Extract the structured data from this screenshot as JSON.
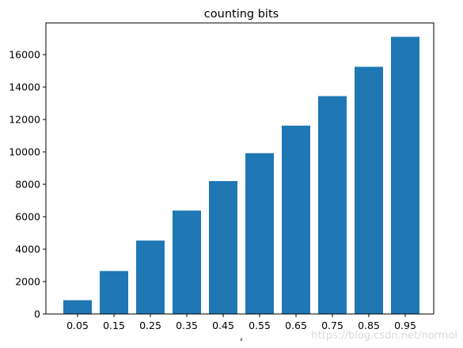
{
  "chart_data": {
    "type": "bar",
    "title": "counting bits",
    "xlabel": "x",
    "ylabel": "",
    "categories": [
      "0.05",
      "0.15",
      "0.25",
      "0.35",
      "0.45",
      "0.55",
      "0.65",
      "0.75",
      "0.85",
      "0.95"
    ],
    "values": [
      850,
      2650,
      4530,
      6380,
      8200,
      9920,
      11620,
      13440,
      15250,
      17100
    ],
    "ylim": [
      0,
      17955
    ],
    "yticks": [
      "0",
      "2000",
      "4000",
      "6000",
      "8000",
      "10000",
      "12000",
      "14000",
      "16000"
    ],
    "bar_color": "#1f77b4",
    "grid": false,
    "legend": "none"
  },
  "watermark": "https://blog.csdn.net/normol"
}
